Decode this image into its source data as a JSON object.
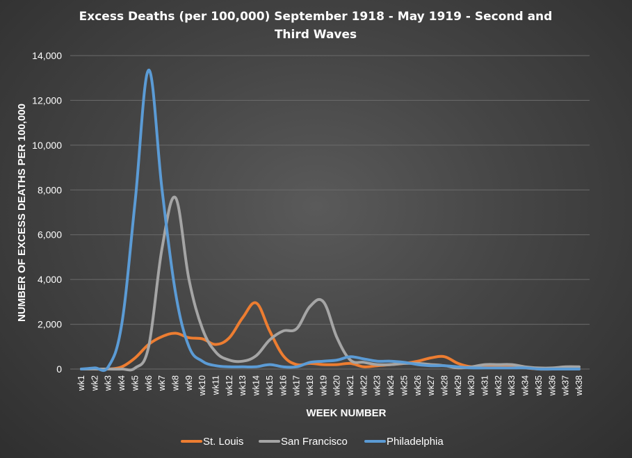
{
  "chart_data": {
    "type": "line",
    "title_line1": "Excess Deaths (per 100,000) September 1918 - May 1919 - Second and",
    "title_line2": "Third Waves",
    "xlabel": "WEEK NUMBER",
    "ylabel": "NUMBER OF EXCESS DEATHS PER 100,000",
    "ylim": [
      0,
      14000
    ],
    "yticks": [
      "0",
      "2,000",
      "4,000",
      "6,000",
      "8,000",
      "10,000",
      "12,000",
      "14,000"
    ],
    "ytick_values": [
      0,
      2000,
      4000,
      6000,
      8000,
      10000,
      12000,
      14000
    ],
    "grid": true,
    "legend_position": "bottom",
    "categories": [
      "wk1",
      "wk2",
      "wk3",
      "wk4",
      "wk5",
      "wk6",
      "wk7",
      "wk8",
      "wk9",
      "wk10",
      "wk11",
      "wk12",
      "wk13",
      "wk14",
      "wk15",
      "wk16",
      "wk17",
      "wk18",
      "wk19",
      "wk20",
      "wk21",
      "wk22",
      "wk23",
      "wk24",
      "wk25",
      "wk26",
      "wk27",
      "wk28",
      "wk29",
      "wk30",
      "wk31",
      "wk32",
      "wk33",
      "wk34",
      "wk35",
      "wk36",
      "wk37",
      "wk38"
    ],
    "series": [
      {
        "name": "St. Louis",
        "color": "#ed7d31",
        "values": [
          0,
          0,
          0,
          100,
          500,
          1100,
          1450,
          1600,
          1400,
          1350,
          1100,
          1400,
          2300,
          2950,
          1700,
          600,
          200,
          250,
          200,
          200,
          250,
          100,
          150,
          200,
          250,
          350,
          500,
          550,
          250,
          100,
          150,
          100,
          100,
          50,
          0,
          0,
          0,
          0
        ]
      },
      {
        "name": "San Francisco",
        "color": "#a5a5a5",
        "values": [
          0,
          0,
          0,
          0,
          50,
          1000,
          5400,
          7650,
          4000,
          1800,
          750,
          400,
          350,
          600,
          1300,
          1700,
          1800,
          2800,
          3000,
          1400,
          400,
          300,
          200,
          200,
          250,
          250,
          200,
          150,
          50,
          100,
          200,
          200,
          200,
          100,
          50,
          50,
          100,
          100
        ]
      },
      {
        "name": "Philadelphia",
        "color": "#5b9bd5",
        "values": [
          0,
          50,
          100,
          2000,
          7500,
          13350,
          8000,
          3400,
          1000,
          350,
          150,
          100,
          100,
          100,
          200,
          100,
          100,
          300,
          350,
          400,
          550,
          450,
          350,
          350,
          300,
          200,
          150,
          150,
          100,
          50,
          50,
          50,
          50,
          50,
          0,
          0,
          0,
          0
        ]
      }
    ]
  }
}
